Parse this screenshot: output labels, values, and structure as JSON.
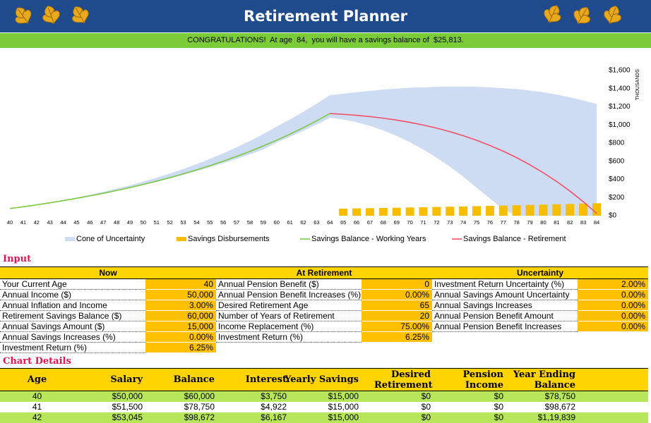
{
  "header": {
    "title": "Retirement Planner",
    "banner": "CONGRATULATIONS!  At age  84,  you will have a savings balance of  $25,813."
  },
  "chart_data": {
    "type": "retirement-combo",
    "y_axis_label": "THOUSANDS",
    "categories": [
      "40",
      "41",
      "42",
      "43",
      "44",
      "45",
      "46",
      "47",
      "48",
      "49",
      "50",
      "51",
      "52",
      "53",
      "54",
      "55",
      "56",
      "57",
      "58",
      "59",
      "60",
      "61",
      "62",
      "63",
      "64",
      "65",
      "66",
      "67",
      "68",
      "69",
      "70",
      "71",
      "72",
      "73",
      "74",
      "75",
      "76",
      "77",
      "78",
      "79",
      "80",
      "81",
      "82",
      "83",
      "84"
    ],
    "ylim": [
      0,
      1600
    ],
    "yticks": [
      {
        "value": 0,
        "label": "$0"
      },
      {
        "value": 200,
        "label": "$200"
      },
      {
        "value": 400,
        "label": "$400"
      },
      {
        "value": 600,
        "label": "$600"
      },
      {
        "value": 800,
        "label": "$800"
      },
      {
        "value": 1000,
        "label": "$1,000"
      },
      {
        "value": 1200,
        "label": "$1,200"
      },
      {
        "value": 1400,
        "label": "$1,400"
      },
      {
        "value": 1600,
        "label": "$1,600"
      }
    ],
    "grid": false,
    "series": [
      {
        "name": "Cone of Uncertainty",
        "kind": "band",
        "color": "#cddcf2",
        "upper": [
          78.8,
          99.6,
          122.0,
          146.1,
          172.2,
          200.2,
          230.4,
          262.9,
          297.7,
          335.2,
          375.4,
          418.7,
          465.1,
          514.9,
          568.4,
          625.8,
          687.3,
          753.4,
          824.1,
          900.0,
          981.3,
          1060.3,
          1144.2,
          1233.5,
          1328.3,
          1345,
          1360,
          1375,
          1390,
          1400,
          1410,
          1415,
          1420,
          1422,
          1422,
          1420,
          1415,
          1405,
          1395,
          1380,
          1360,
          1335,
          1305,
          1270,
          1230
        ],
        "lower": [
          78.8,
          98.5,
          119.4,
          141.6,
          165.2,
          190.2,
          216.6,
          244.7,
          274.4,
          305.8,
          339.0,
          374.0,
          411.0,
          450.0,
          491.0,
          534.0,
          579.0,
          627.0,
          677.0,
          730.0,
          806.0,
          869.0,
          936.0,
          1006.0,
          1080.0,
          1060,
          1030,
          990,
          940,
          880,
          810,
          730,
          640,
          540,
          430,
          310,
          190,
          70,
          0,
          0,
          0,
          0,
          0,
          0,
          0
        ]
      },
      {
        "name": "Savings Disbursements",
        "kind": "bar",
        "color": "#f7bd00",
        "values": [
          null,
          null,
          null,
          null,
          null,
          null,
          null,
          null,
          null,
          null,
          null,
          null,
          null,
          null,
          null,
          null,
          null,
          null,
          null,
          null,
          null,
          null,
          null,
          null,
          null,
          78.5,
          80.9,
          83.3,
          85.8,
          88.4,
          91.0,
          93.7,
          96.6,
          99.4,
          102.4,
          105.5,
          108.7,
          111.9,
          115.3,
          118.7,
          122.3,
          126.0,
          129.7,
          133.6,
          137.6
        ]
      },
      {
        "name": "Savings Balance - Working Years",
        "kind": "line",
        "color": "#7cc843",
        "values": [
          78.8,
          98.7,
          119.8,
          142.3,
          166.2,
          191.6,
          218.6,
          247.3,
          277.7,
          310.1,
          344.4,
          381.0,
          419.8,
          461.0,
          504.8,
          551.4,
          600.8,
          653.4,
          709.2,
          768.6,
          831.6,
          898.6,
          969.7,
          1045.3,
          1125.7,
          null,
          null,
          null,
          null,
          null,
          null,
          null,
          null,
          null,
          null,
          null,
          null,
          null,
          null,
          null,
          null,
          null,
          null,
          null,
          null
        ]
      },
      {
        "name": "Savings Balance - Retirement",
        "kind": "line",
        "color": "#f25068",
        "values": [
          null,
          null,
          null,
          null,
          null,
          null,
          null,
          null,
          null,
          null,
          null,
          null,
          null,
          null,
          null,
          null,
          null,
          null,
          null,
          null,
          null,
          null,
          null,
          null,
          1125.7,
          1117.5,
          1106.4,
          1092.3,
          1074.8,
          1053.6,
          1028.5,
          999.1,
          964.9,
          925.8,
          881.3,
          830.9,
          774.1,
          710.6,
          639.7,
          561.0,
          473.8,
          377.4,
          271.3,
          154.7,
          25.8
        ]
      }
    ]
  },
  "input": {
    "title": "Input",
    "groups": [
      {
        "heading": "Now",
        "rows": [
          [
            "Your Current Age",
            "40"
          ],
          [
            "Annual Income ($)",
            "50,000"
          ],
          [
            "Annual Inflation and Income",
            "3.00%"
          ],
          [
            "Retirement Savings Balance ($)",
            "60,000"
          ],
          [
            "Annual Savings Amount ($)",
            "15,000"
          ],
          [
            "Annual Savings Increases (%)",
            "0.00%"
          ],
          [
            "Investment Return (%)",
            "6.25%"
          ]
        ]
      },
      {
        "heading": "At Retirement",
        "rows": [
          [
            "Annual Pension Benefit ($)",
            "0"
          ],
          [
            "Annual Pension Benefit Increases (%)",
            "0.00%"
          ],
          [
            "Desired Retirement Age",
            "65"
          ],
          [
            "Number of Years of Retirement",
            "20"
          ],
          [
            "Income Replacement (%)",
            "75.00%"
          ],
          [
            "Investment Return (%)",
            "6.25%"
          ]
        ]
      },
      {
        "heading": "Uncertainty",
        "rows": [
          [
            "Investment Return Uncertainty (%)",
            "2.00%"
          ],
          [
            "Annual Savings Amount Uncertainty",
            "0.00%"
          ],
          [
            "Annual Savings Increases",
            "0.00%"
          ],
          [
            "Annual Pension Benefit Amount",
            "0.00%"
          ],
          [
            "Annual Pension Benefit Increases",
            "0.00%"
          ]
        ]
      }
    ]
  },
  "details": {
    "title": "Chart Details",
    "columns": [
      "Age",
      "Salary",
      "Balance",
      "Interest",
      "Yearly Savings",
      "Desired Retirement",
      "Pension Income",
      "Year Ending Balance"
    ],
    "rows": [
      [
        "40",
        "$50,000",
        "$60,000",
        "$3,750",
        "$15,000",
        "$0",
        "$0",
        "$78,750"
      ],
      [
        "41",
        "$51,500",
        "$78,750",
        "$4,922",
        "$15,000",
        "$0",
        "$0",
        "$98,672"
      ],
      [
        "42",
        "$53,045",
        "$98,672",
        "$6,167",
        "$15,000",
        "$0",
        "$0",
        "$1,19,839"
      ]
    ]
  }
}
